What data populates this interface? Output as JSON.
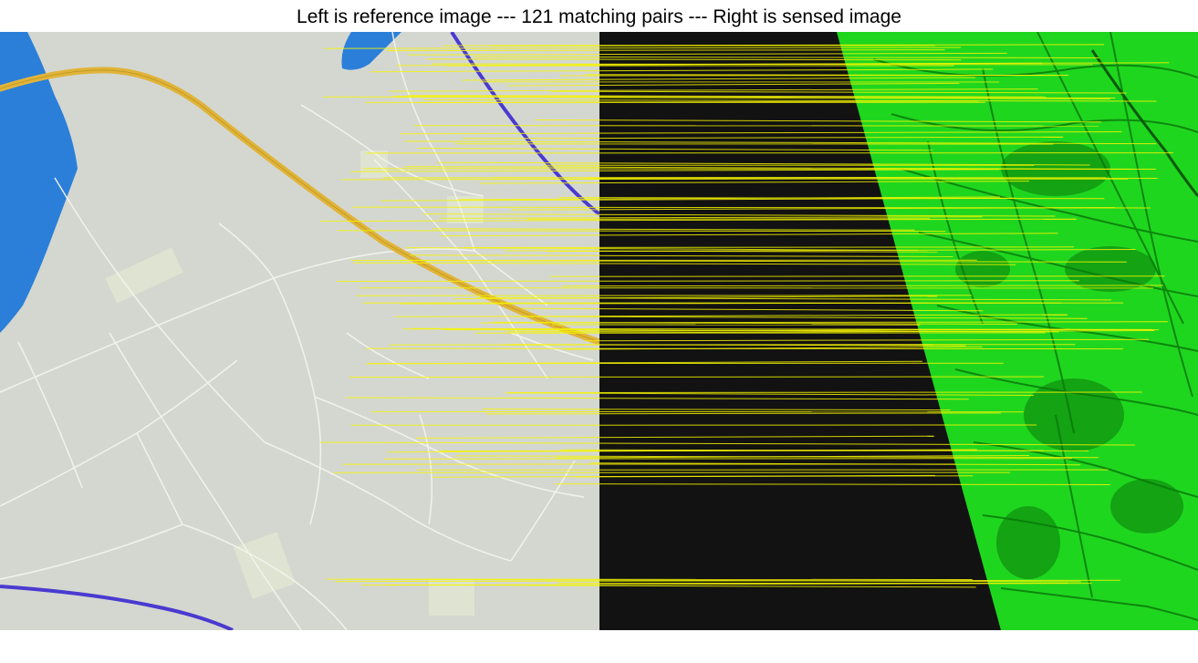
{
  "figure": {
    "title": "Left is reference image --- 121 matching pairs --- Right is sensed image"
  },
  "reference_panel": {
    "description_type": "street map rendering",
    "colors": {
      "land": "#d4d7d0",
      "water": "#2b7fd9",
      "highway": "#e0b43a",
      "railway": "#4a3ad0",
      "roads": "#f4f4ee",
      "builtup": "#dfe6d2"
    }
  },
  "sensed_panel": {
    "description_type": "terrain / elevation render",
    "colors": {
      "background": "#121212",
      "terrain": "#1fd61f",
      "terrain_dark": "#0a7a0a"
    }
  },
  "matches": {
    "count": 121,
    "line_color": "#f5f500"
  }
}
